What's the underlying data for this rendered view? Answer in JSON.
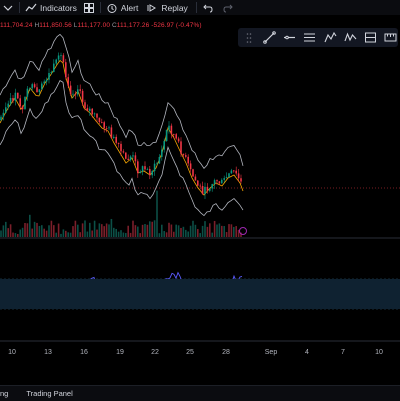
{
  "toolbar": {
    "indicators_label": "Indicators",
    "alert_label": "Alert",
    "replay_label": "Replay"
  },
  "ohlc": {
    "open_value": "111,704.24",
    "high_label": "H",
    "high_value": "111,850.56",
    "low_label": "L",
    "low_value": "111,177.00",
    "close_label": "C",
    "close_value": "111,177.26",
    "change": "-526.97 (-0.47%)"
  },
  "drawing_tools": [
    "trend-line",
    "horizontal-ray",
    "parallel-channel",
    "fib-retracement",
    "xabcd-pattern",
    "long-position",
    "measure"
  ],
  "x_axis": {
    "labels": [
      "10",
      "13",
      "16",
      "19",
      "22",
      "25",
      "28",
      "Sep",
      "4",
      "7",
      "10"
    ]
  },
  "bottom_bar": {
    "left_label": "ng",
    "trading_panel_label": "Trading Panel"
  },
  "colors": {
    "up": "#089981",
    "down": "#f23645",
    "bollinger": "#b2b5be",
    "basis": "#f7a600",
    "rsi_line": "#5b5bff",
    "rsi_ma": "#f7c948"
  }
}
